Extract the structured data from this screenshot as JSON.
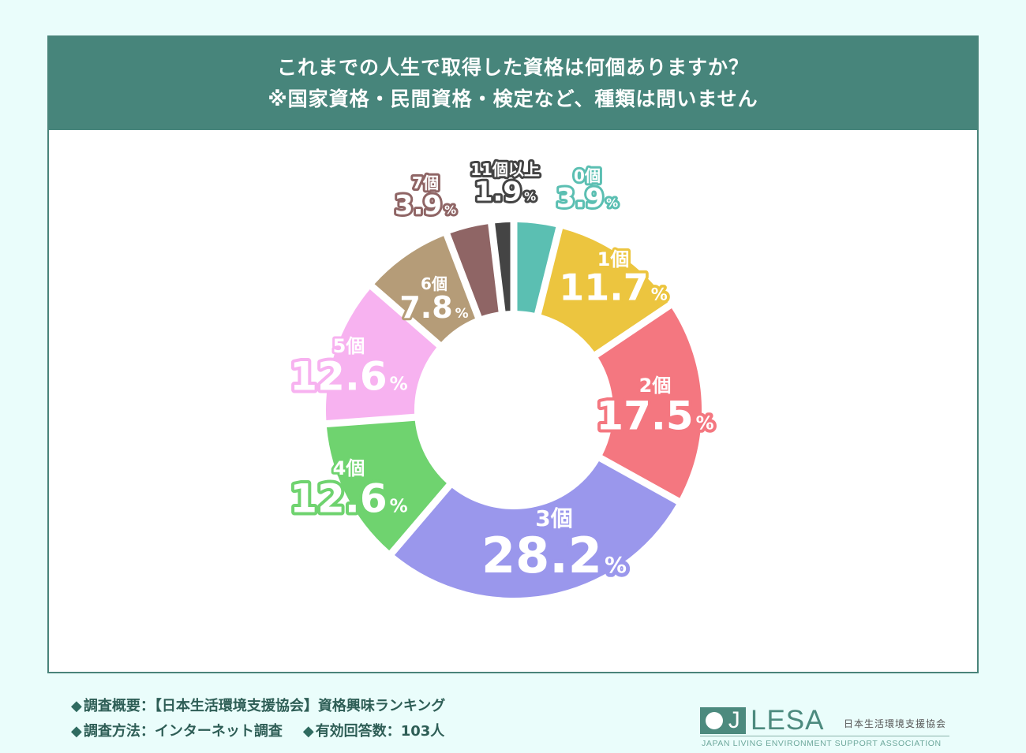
{
  "header": {
    "title_line1": "これまでの人生で取得した資格は何個ありますか？",
    "title_line2": "※国家資格・民間資格・検定など、種類は問いません"
  },
  "chart_data": {
    "type": "pie",
    "subtype": "donut",
    "title": "これまでの人生で取得した資格は何個ありますか？",
    "subtitle": "※国家資格・民間資格・検定など、種類は問いません",
    "categories": [
      "0個",
      "1個",
      "2個",
      "3個",
      "4個",
      "5個",
      "6個",
      "7個",
      "11個以上"
    ],
    "values": [
      3.9,
      11.7,
      17.5,
      28.2,
      12.6,
      12.6,
      7.8,
      3.9,
      1.9
    ],
    "unit": "%",
    "colors": [
      "#5bbfb2",
      "#ecc53f",
      "#f47780",
      "#9a97ec",
      "#6fd36f",
      "#f7b2f0",
      "#b59c78",
      "#8f6565",
      "#444444"
    ],
    "start_angle": "12 o'clock",
    "direction": "clockwise",
    "sample_size": 103
  },
  "labels": [
    {
      "cat": "0個",
      "val": "3.9",
      "pct": "%"
    },
    {
      "cat": "1個",
      "val": "11.7",
      "pct": "%"
    },
    {
      "cat": "2個",
      "val": "17.5",
      "pct": "%"
    },
    {
      "cat": "3個",
      "val": "28.2",
      "pct": "%"
    },
    {
      "cat": "4個",
      "val": "12.6",
      "pct": "%"
    },
    {
      "cat": "5個",
      "val": "12.6",
      "pct": "%"
    },
    {
      "cat": "6個",
      "val": "7.8",
      "pct": "%"
    },
    {
      "cat": "7個",
      "val": "3.9",
      "pct": "%"
    },
    {
      "cat": "11個以上",
      "val": "1.9",
      "pct": "%"
    }
  ],
  "footer": {
    "bullet": "◆",
    "line1_label": "調査概要：",
    "line1_value": "【日本生活環境支援協会】資格興味ランキング",
    "line2_label": "調査方法：",
    "line2_value": "インターネット調査",
    "line3_label": "有効回答数：",
    "line3_value": "103人"
  },
  "logo": {
    "mark_j": "J",
    "name": "LESA",
    "name_jp": "日本生活環境支援協会",
    "name_en": "JAPAN LIVING ENVIRONMENT SUPPORT ASSOCIATION"
  }
}
